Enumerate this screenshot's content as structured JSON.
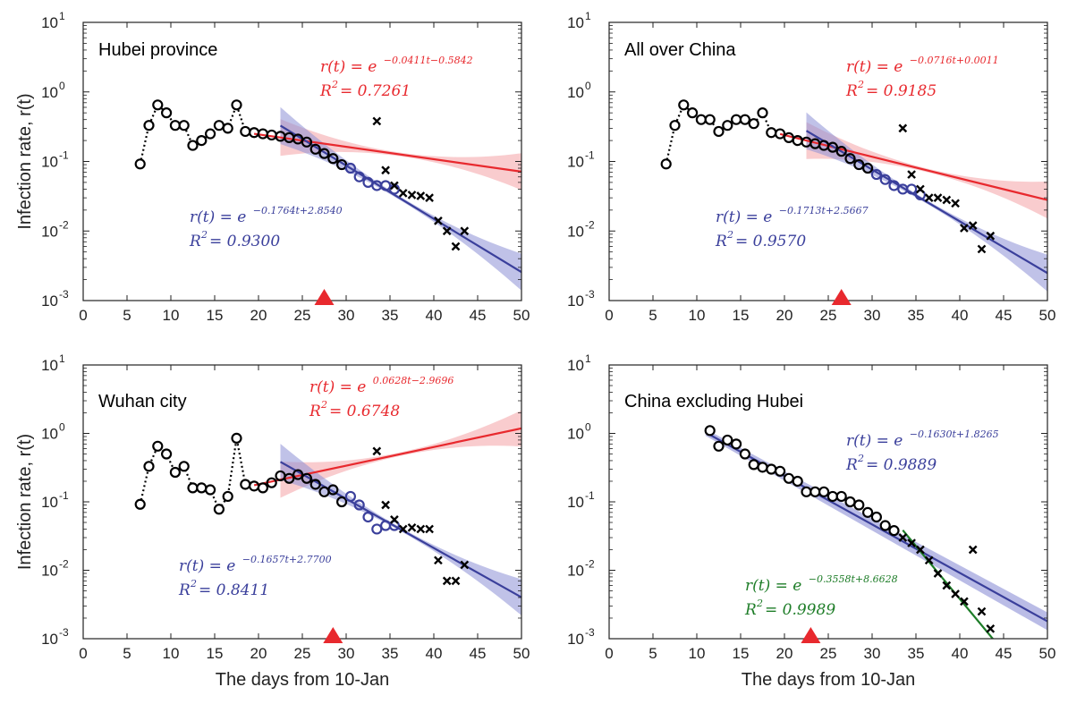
{
  "chart_data": [
    {
      "type": "scatter",
      "title": "Hubei province",
      "xlabel": "",
      "ylabel": "Infection rate, r(t)",
      "xlim": [
        0,
        50
      ],
      "ylim": [
        0.001,
        10
      ],
      "yscale": "log",
      "x_ticks": [
        "0",
        "5",
        "10",
        "15",
        "20",
        "25",
        "30",
        "35",
        "40",
        "45",
        "50"
      ],
      "y_tick_exponents": [
        "-3",
        "-2",
        "-1",
        "0",
        "1"
      ],
      "marker_triangle_x": 27.5,
      "black_circles": {
        "x": [
          6.5,
          7.5,
          8.5,
          9.5,
          10.5,
          11.5,
          12.5,
          13.5,
          14.5,
          15.5,
          16.5,
          17.5,
          18.5
        ],
        "y": [
          0.092,
          0.33,
          0.65,
          0.5,
          0.33,
          0.33,
          0.17,
          0.2,
          0.25,
          0.33,
          0.3,
          0.65,
          0.27
        ]
      },
      "blue_circles": {
        "x": [
          19.5,
          20.5,
          21.5,
          22.5,
          23.5,
          24.5,
          25.5,
          26.5,
          27.5,
          28.5,
          29.5,
          30.5,
          31.5,
          32.5,
          33.5,
          34.5,
          35.5
        ],
        "y": [
          0.26,
          0.25,
          0.24,
          0.23,
          0.22,
          0.21,
          0.19,
          0.15,
          0.13,
          0.11,
          0.09,
          0.08,
          0.06,
          0.05,
          0.045,
          0.045,
          0.04
        ]
      },
      "crosses": {
        "x": [
          33.5,
          34.5,
          35.5,
          36.5,
          37.5,
          38.5,
          39.5,
          40.5,
          41.5,
          42.5,
          43.5
        ],
        "y": [
          0.38,
          0.075,
          0.045,
          0.035,
          0.033,
          0.032,
          0.03,
          0.014,
          0.01,
          0.006,
          0.01
        ]
      },
      "red_fit": {
        "x_start": 19.5,
        "x_end": 50,
        "a": -0.0411,
        "b": -0.5842,
        "band_x_start": 22.5
      },
      "blue_fit": {
        "x_start": 22.5,
        "x_end": 50,
        "a": -0.1764,
        "b": 2.854
      },
      "annotations": {
        "red": {
          "lhs": "r(t) = e",
          "exp": "−0.0411t−0.5842",
          "r2": "R",
          "r2_val": " = 0.7261"
        },
        "blue": {
          "lhs": "r(t) = e",
          "exp": "−0.1764t+2.8540",
          "r2": "R",
          "r2_val": " = 0.9300"
        }
      }
    },
    {
      "type": "scatter",
      "title": "All over China",
      "xlabel": "",
      "ylabel": "",
      "xlim": [
        0,
        50
      ],
      "ylim": [
        0.001,
        10
      ],
      "yscale": "log",
      "x_ticks": [
        "0",
        "5",
        "10",
        "15",
        "20",
        "25",
        "30",
        "35",
        "40",
        "45",
        "50"
      ],
      "y_tick_exponents": [
        "-3",
        "-2",
        "-1",
        "0",
        "1"
      ],
      "marker_triangle_x": 26.5,
      "black_circles": {
        "x": [
          6.5,
          7.5,
          8.5,
          9.5,
          10.5,
          11.5,
          12.5,
          13.5,
          14.5,
          15.5,
          16.5,
          17.5,
          18.5
        ],
        "y": [
          0.092,
          0.33,
          0.65,
          0.5,
          0.4,
          0.4,
          0.27,
          0.33,
          0.4,
          0.4,
          0.35,
          0.5,
          0.26
        ]
      },
      "blue_circles": {
        "x": [
          19.5,
          20.5,
          21.5,
          22.5,
          23.5,
          24.5,
          25.5,
          26.5,
          27.5,
          28.5,
          29.5,
          30.5,
          31.5,
          32.5,
          33.5,
          34.5,
          35.5
        ],
        "y": [
          0.25,
          0.22,
          0.2,
          0.19,
          0.18,
          0.17,
          0.16,
          0.14,
          0.11,
          0.09,
          0.08,
          0.065,
          0.055,
          0.045,
          0.04,
          0.04,
          0.033
        ]
      },
      "crosses": {
        "x": [
          33.5,
          34.5,
          35.5,
          36.5,
          37.5,
          38.5,
          39.5,
          40.5,
          41.5,
          42.5,
          43.5
        ],
        "y": [
          0.3,
          0.065,
          0.04,
          0.03,
          0.03,
          0.028,
          0.025,
          0.011,
          0.012,
          0.0055,
          0.0085
        ]
      },
      "red_fit": {
        "x_start": 19.5,
        "x_end": 50,
        "a": -0.0716,
        "b": 0.0011,
        "band_x_start": 22.5
      },
      "blue_fit": {
        "x_start": 22.5,
        "x_end": 50,
        "a": -0.1713,
        "b": 2.5667
      },
      "annotations": {
        "red": {
          "lhs": "r(t) = e",
          "exp": "−0.0716t+0.0011",
          "r2": "R",
          "r2_val": " = 0.9185"
        },
        "blue": {
          "lhs": "r(t) = e",
          "exp": "−0.1713t+2.5667",
          "r2": "R",
          "r2_val": " = 0.9570"
        }
      }
    },
    {
      "type": "scatter",
      "title": "Wuhan city",
      "xlabel": "The days from 10-Jan",
      "ylabel": "Infection rate, r(t)",
      "xlim": [
        0,
        50
      ],
      "ylim": [
        0.001,
        10
      ],
      "yscale": "log",
      "x_ticks": [
        "0",
        "5",
        "10",
        "15",
        "20",
        "25",
        "30",
        "35",
        "40",
        "45",
        "50"
      ],
      "y_tick_exponents": [
        "-3",
        "-2",
        "-1",
        "0",
        "1"
      ],
      "marker_triangle_x": 28.5,
      "black_circles": {
        "x": [
          6.5,
          7.5,
          8.5,
          9.5,
          10.5,
          11.5,
          12.5,
          13.5,
          14.5,
          15.5,
          16.5,
          17.5,
          18.5
        ],
        "y": [
          0.092,
          0.33,
          0.65,
          0.5,
          0.27,
          0.33,
          0.16,
          0.16,
          0.15,
          0.078,
          0.12,
          0.85,
          0.18
        ]
      },
      "blue_circles": {
        "x": [
          19.5,
          20.5,
          21.5,
          22.5,
          23.5,
          24.5,
          25.5,
          26.5,
          27.5,
          28.5,
          29.5,
          30.5,
          31.5,
          32.5,
          33.5,
          34.5,
          35.5
        ],
        "y": [
          0.17,
          0.16,
          0.19,
          0.24,
          0.22,
          0.25,
          0.22,
          0.18,
          0.14,
          0.15,
          0.1,
          0.12,
          0.09,
          0.06,
          0.04,
          0.045,
          0.045
        ]
      },
      "crosses": {
        "x": [
          33.5,
          34.5,
          35.5,
          36.5,
          37.5,
          38.5,
          39.5,
          40.5,
          41.5,
          42.5,
          43.5
        ],
        "y": [
          0.55,
          0.09,
          0.055,
          0.04,
          0.042,
          0.04,
          0.04,
          0.014,
          0.007,
          0.007,
          0.012
        ]
      },
      "red_fit": {
        "x_start": 19.5,
        "x_end": 50,
        "a": 0.0628,
        "b": -2.9696,
        "band_x_start": 22.5
      },
      "blue_fit": {
        "x_start": 22.5,
        "x_end": 50,
        "a": -0.1657,
        "b": 2.77
      },
      "annotations": {
        "red": {
          "lhs": "r(t) = e",
          "exp": "0.0628t−2.9696",
          "r2": "R",
          "r2_val": " = 0.6748"
        },
        "blue": {
          "lhs": "r(t) = e",
          "exp": "−0.1657t+2.7700",
          "r2": "R",
          "r2_val": " = 0.8411"
        }
      }
    },
    {
      "type": "scatter",
      "title": "China excluding Hubei",
      "xlabel": "The days from 10-Jan",
      "ylabel": "",
      "xlim": [
        0,
        50
      ],
      "ylim": [
        0.001,
        10
      ],
      "yscale": "log",
      "x_ticks": [
        "0",
        "5",
        "10",
        "15",
        "20",
        "25",
        "30",
        "35",
        "40",
        "45",
        "50"
      ],
      "y_tick_exponents": [
        "-3",
        "-2",
        "-1",
        "0",
        "1"
      ],
      "marker_triangle_x": 23,
      "black_circles": {
        "x": [
          11.5,
          12.5,
          13.5,
          14.5,
          15.5,
          16.5,
          17.5,
          18.5,
          19.5,
          20.5,
          21.5,
          22.5,
          23.5,
          24.5,
          25.5,
          26.5,
          27.5,
          28.5,
          29.5,
          30.5,
          31.5,
          32.5
        ],
        "y": [
          1.1,
          0.65,
          0.8,
          0.7,
          0.5,
          0.35,
          0.32,
          0.3,
          0.28,
          0.22,
          0.2,
          0.14,
          0.14,
          0.14,
          0.12,
          0.12,
          0.1,
          0.09,
          0.07,
          0.06,
          0.045,
          0.038
        ]
      },
      "blue_circles": {
        "x": [],
        "y": []
      },
      "crosses": {
        "x": [
          33.5,
          34.5,
          35.5,
          36.5,
          37.5,
          38.5,
          39.5,
          40.5,
          41.5,
          42.5,
          43.5
        ],
        "y": [
          0.03,
          0.025,
          0.02,
          0.014,
          0.009,
          0.006,
          0.0045,
          0.0035,
          0.02,
          0.0025,
          0.0014
        ]
      },
      "blue_fit": {
        "x_start": 11,
        "x_end": 50,
        "a": -0.163,
        "b": 1.8265
      },
      "green_fit": {
        "x_start": 33.5,
        "x_end": 44,
        "a": -0.3558,
        "b": 8.6628
      },
      "annotations": {
        "blue": {
          "lhs": "r(t) = e",
          "exp": "−0.1630t+1.8265",
          "r2": "R",
          "r2_val": " = 0.9889"
        },
        "green": {
          "lhs": "r(t) = e",
          "exp": "−0.3558t+8.6628",
          "r2": "R",
          "r2_val": " = 0.9989"
        }
      }
    }
  ],
  "colors": {
    "red": "#e8292e",
    "red_band": "#f4a3a6",
    "blue": "#3a3f9b",
    "blue_band": "#8c8fd6",
    "green": "#1e7d28",
    "black": "#000000",
    "triangle": "#e8292e"
  }
}
